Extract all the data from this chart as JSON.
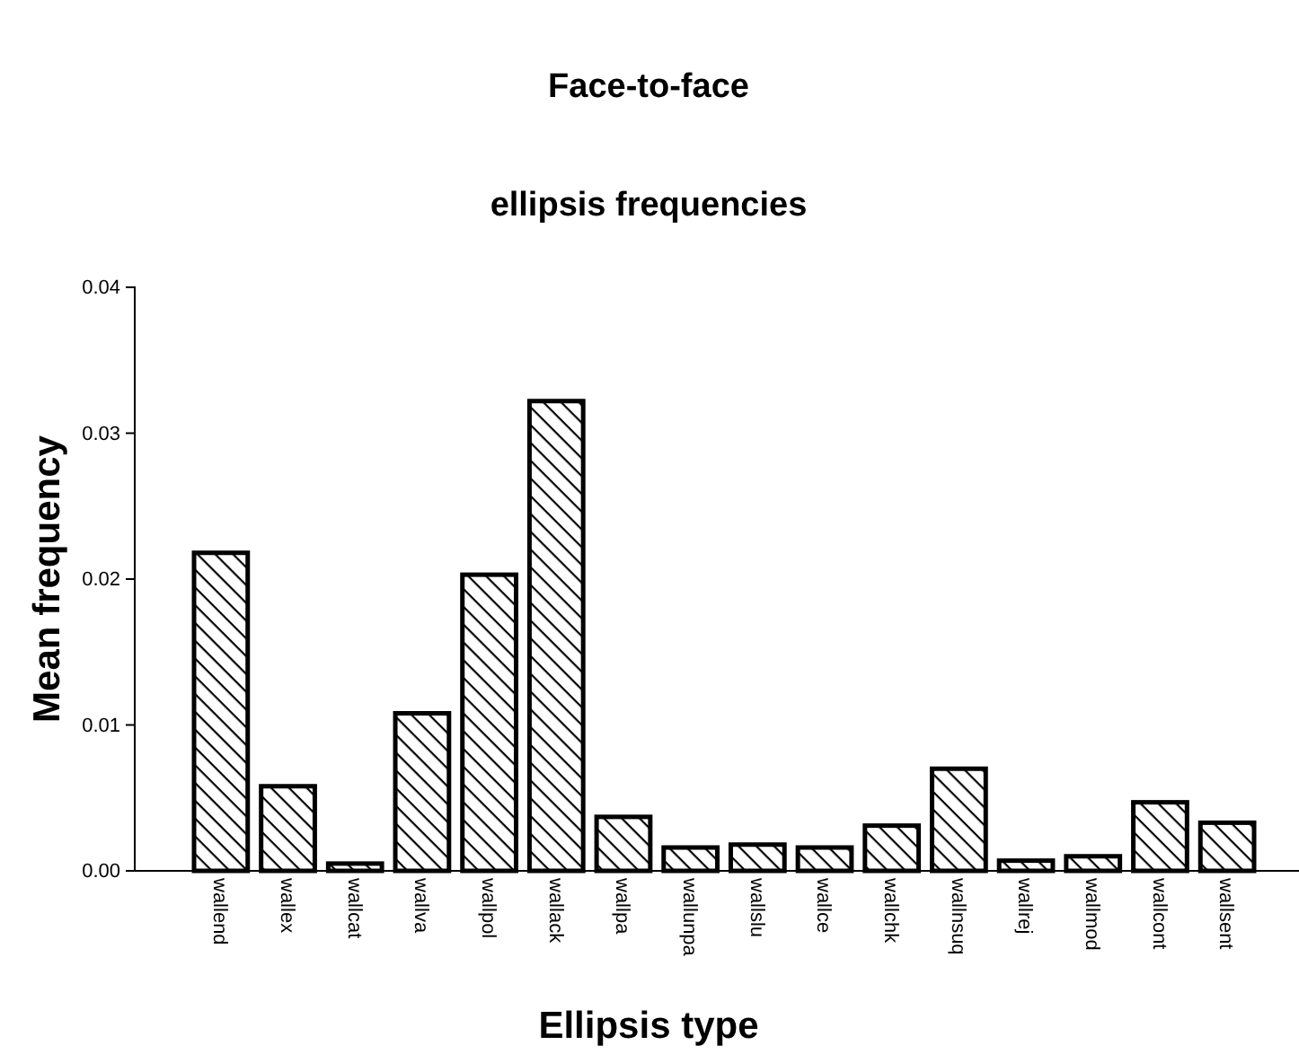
{
  "chart_data": {
    "type": "bar",
    "title": "Face-to-face",
    "subtitle": "ellipsis frequencies",
    "xlabel": "Ellipsis type",
    "ylabel": "Mean frequency",
    "categories": [
      "wallend",
      "wallex",
      "wallcat",
      "wallva",
      "wallpol",
      "wallack",
      "wallpa",
      "wallunpa",
      "wallslu",
      "wallce",
      "wallchk",
      "wallnsuq",
      "wallrej",
      "wallmod",
      "wallcont",
      "wallsent"
    ],
    "values": [
      0.0218,
      0.0058,
      0.0005,
      0.0108,
      0.0203,
      0.0322,
      0.0037,
      0.0016,
      0.0018,
      0.0016,
      0.0031,
      0.007,
      0.0007,
      0.001,
      0.0047,
      0.0033
    ],
    "color": "#000000",
    "ylim": [
      0,
      0.04
    ],
    "yticks": [
      {
        "value": 0,
        "label": "0.00"
      },
      {
        "value": 0.01,
        "label": "0.01"
      },
      {
        "value": 0.02,
        "label": "0.02"
      },
      {
        "value": 0.03,
        "label": "0.03"
      },
      {
        "value": 0.04,
        "label": "0.04"
      }
    ],
    "grid": false
  }
}
